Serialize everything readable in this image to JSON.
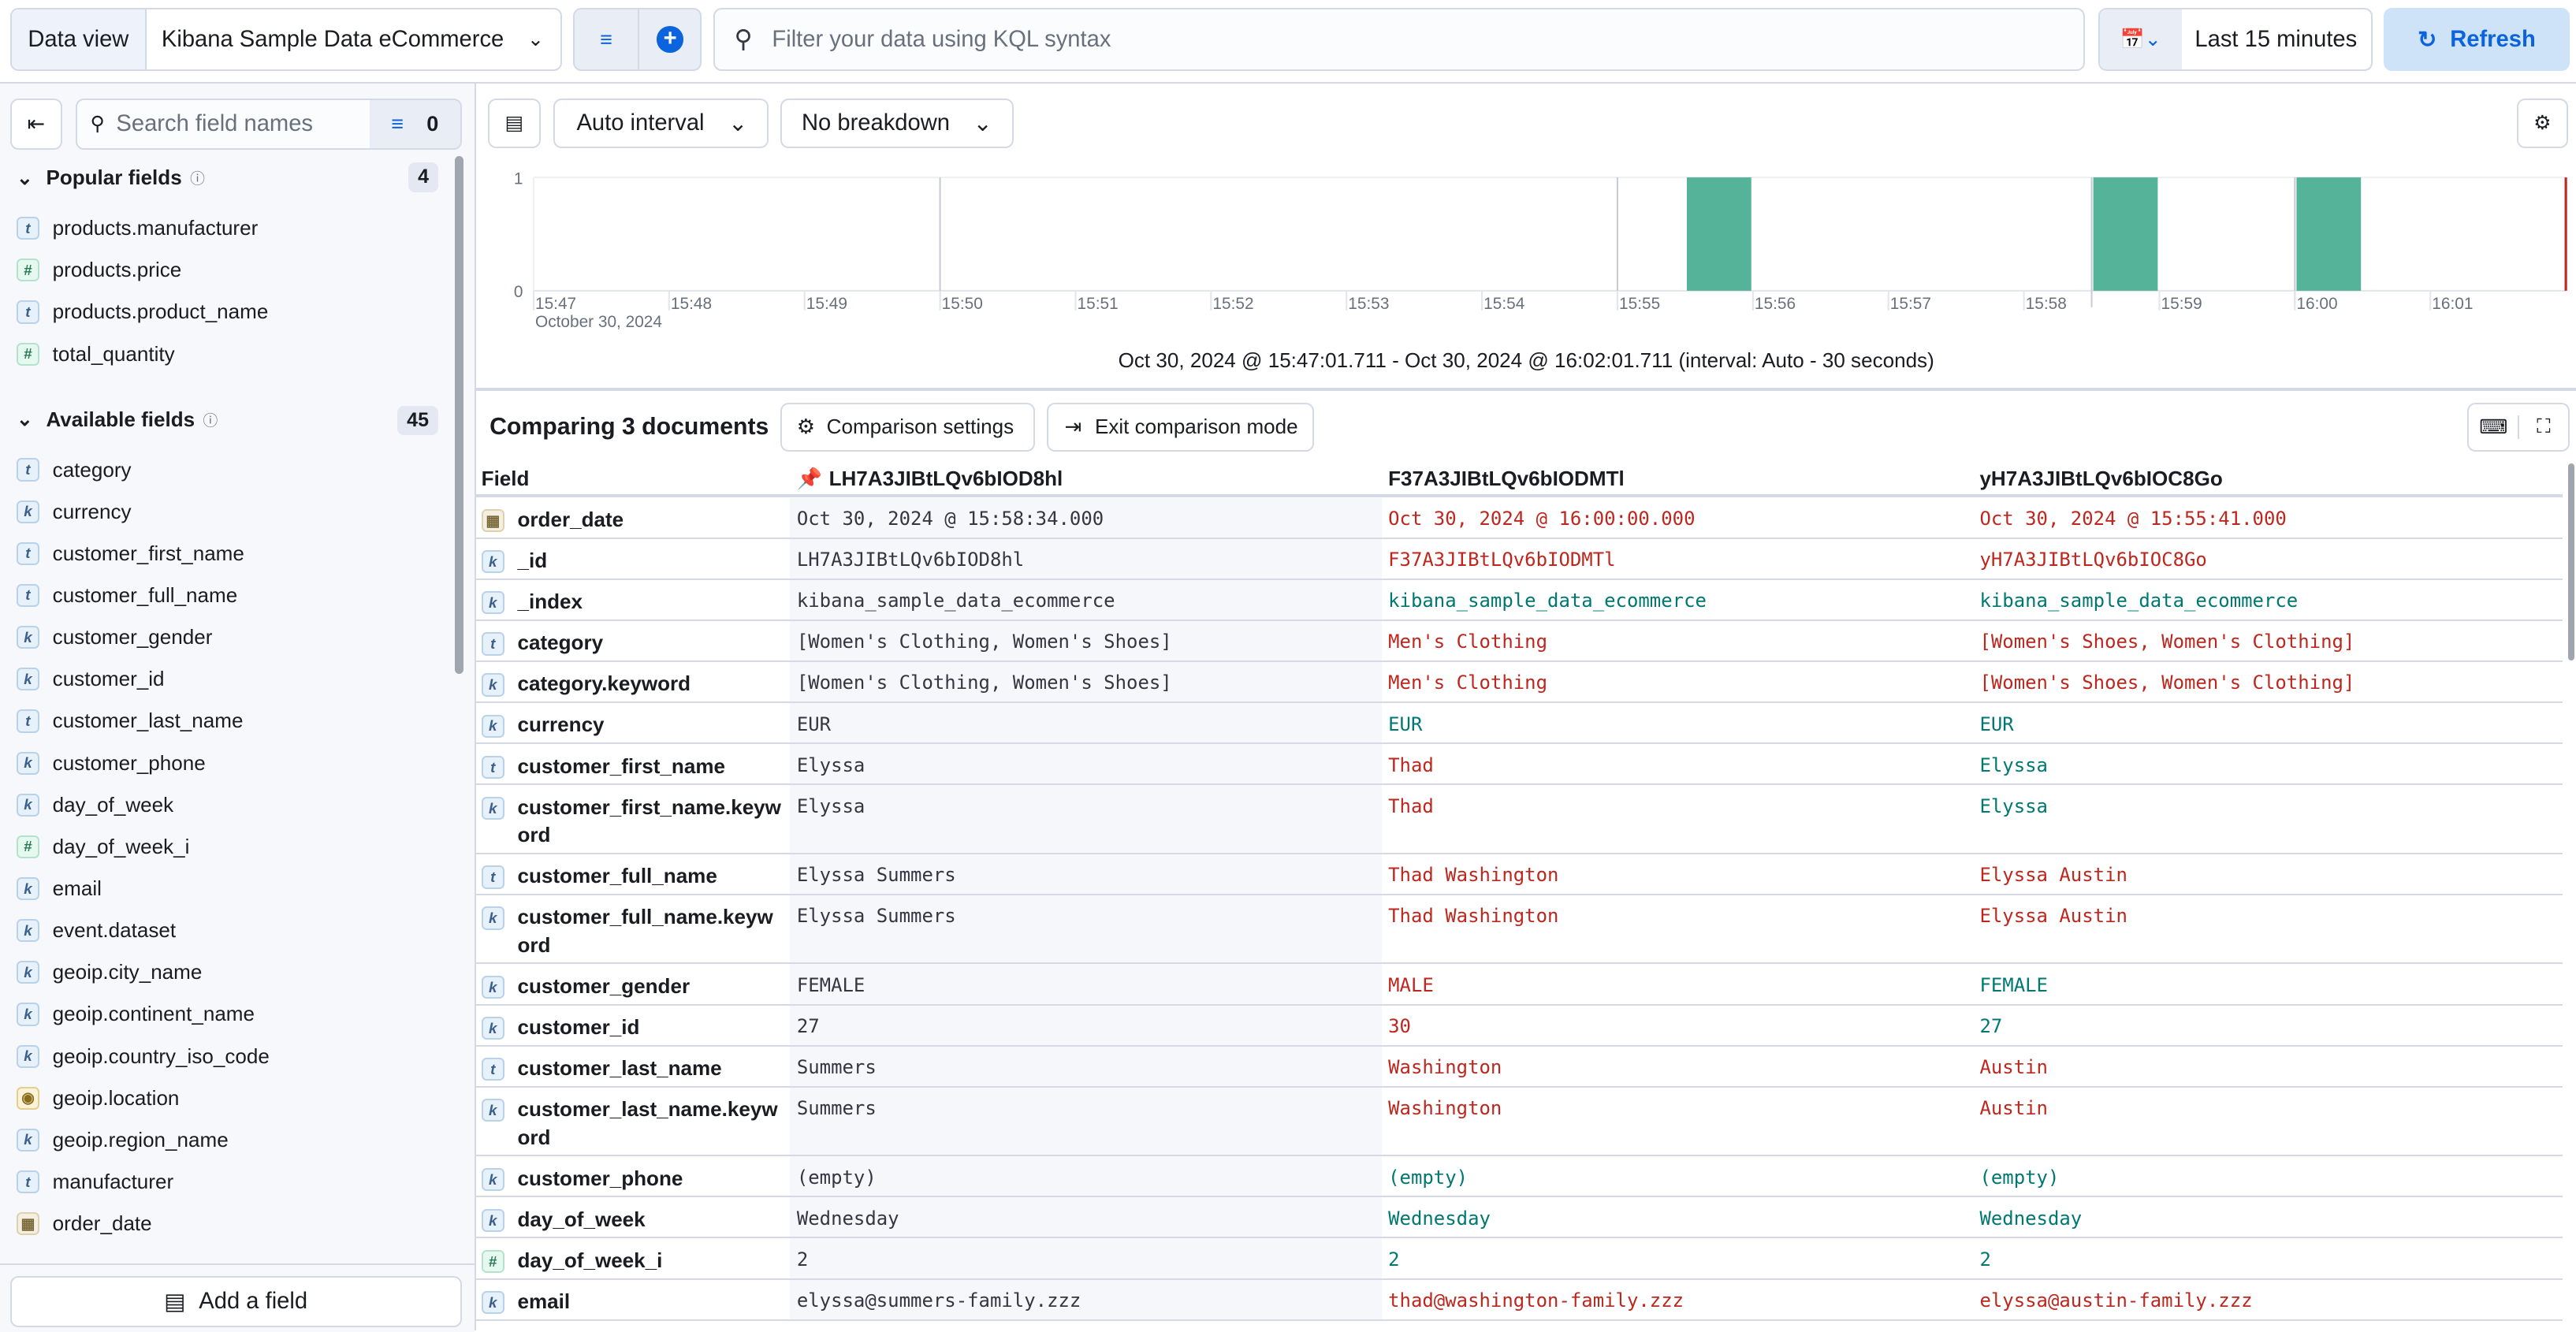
{
  "topbar": {
    "data_view_label": "Data view",
    "data_view_value": "Kibana Sample Data eCommerce",
    "query_placeholder": "Filter your data using KQL syntax",
    "time_range": "Last 15 minutes",
    "refresh_label": "Refresh",
    "accent": "#0b64dd"
  },
  "sidebar": {
    "search_placeholder": "Search field names",
    "filter_count": "0",
    "popular": {
      "title": "Popular fields",
      "count": "4",
      "fields": [
        {
          "type": "t",
          "name": "products.manufacturer"
        },
        {
          "type": "n",
          "name": "products.price"
        },
        {
          "type": "t",
          "name": "products.product_name"
        },
        {
          "type": "n",
          "name": "total_quantity"
        }
      ]
    },
    "available": {
      "title": "Available fields",
      "count": "45",
      "fields": [
        {
          "type": "t",
          "name": "category"
        },
        {
          "type": "k",
          "name": "currency"
        },
        {
          "type": "t",
          "name": "customer_first_name"
        },
        {
          "type": "t",
          "name": "customer_full_name"
        },
        {
          "type": "k",
          "name": "customer_gender"
        },
        {
          "type": "k",
          "name": "customer_id"
        },
        {
          "type": "t",
          "name": "customer_last_name"
        },
        {
          "type": "k",
          "name": "customer_phone"
        },
        {
          "type": "k",
          "name": "day_of_week"
        },
        {
          "type": "n",
          "name": "day_of_week_i"
        },
        {
          "type": "k",
          "name": "email"
        },
        {
          "type": "k",
          "name": "event.dataset"
        },
        {
          "type": "k",
          "name": "geoip.city_name"
        },
        {
          "type": "k",
          "name": "geoip.continent_name"
        },
        {
          "type": "k",
          "name": "geoip.country_iso_code"
        },
        {
          "type": "g",
          "name": "geoip.location"
        },
        {
          "type": "k",
          "name": "geoip.region_name"
        },
        {
          "type": "t",
          "name": "manufacturer"
        },
        {
          "type": "d",
          "name": "order_date"
        }
      ]
    },
    "add_field_label": "Add a field"
  },
  "chart_toolbar": {
    "interval": "Auto interval",
    "breakdown": "No breakdown"
  },
  "chart_data": {
    "type": "bar",
    "x_ticks": [
      "15:47",
      "15:48",
      "15:49",
      "15:50",
      "15:51",
      "15:52",
      "15:53",
      "15:54",
      "15:55",
      "15:56",
      "15:57",
      "15:58",
      "15:59",
      "16:00",
      "16:01"
    ],
    "x_sublabel": "October 30, 2024",
    "y_ticks": [
      "0",
      "1"
    ],
    "ylim": [
      0,
      1
    ],
    "bars": [
      {
        "start": "15:55:30",
        "end": "15:56:00",
        "value": 1
      },
      {
        "start": "15:58:30",
        "end": "15:59:00",
        "value": 1
      },
      {
        "start": "16:00:00",
        "end": "16:00:30",
        "value": 1
      }
    ],
    "bar_color": "#54b399",
    "caption": "Oct 30, 2024 @ 15:47:01.711 - Oct 30, 2024 @ 16:02:01.711 (interval: Auto - 30 seconds)"
  },
  "comparison": {
    "title": "Comparing 3 documents",
    "settings_label": "Comparison settings",
    "exit_label": "Exit comparison mode",
    "headers": [
      "Field",
      "LH7A3JIBtLQv6bIOD8hl",
      "F37A3JIBtLQv6bIODMTl",
      "yH7A3JIBtLQv6bIOC8Go"
    ],
    "colors": {
      "diff": "#bd271e",
      "same": "#007871"
    },
    "rows": [
      {
        "type": "d",
        "name": "order_date",
        "values": [
          "Oct 30, 2024 @ 15:58:34.000",
          "Oct 30, 2024 @ 16:00:00.000",
          "Oct 30, 2024 @ 15:55:41.000"
        ],
        "status": [
          "base",
          "diff",
          "diff"
        ]
      },
      {
        "type": "k",
        "name": "_id",
        "values": [
          "LH7A3JIBtLQv6bIOD8hl",
          "F37A3JIBtLQv6bIODMTl",
          "yH7A3JIBtLQv6bIOC8Go"
        ],
        "status": [
          "base",
          "diff",
          "diff"
        ]
      },
      {
        "type": "k",
        "name": "_index",
        "values": [
          "kibana_sample_data_ecommerce",
          "kibana_sample_data_ecommerce",
          "kibana_sample_data_ecommerce"
        ],
        "status": [
          "base",
          "same",
          "same"
        ]
      },
      {
        "type": "t",
        "name": "category",
        "values": [
          "[Women's Clothing, Women's Shoes]",
          "Men's Clothing",
          "[Women's Shoes, Women's Clothing]"
        ],
        "status": [
          "base",
          "diff",
          "diff"
        ]
      },
      {
        "type": "k",
        "name": "category.keyword",
        "values": [
          "[Women's Clothing, Women's Shoes]",
          "Men's Clothing",
          "[Women's Shoes, Women's Clothing]"
        ],
        "status": [
          "base",
          "diff",
          "diff"
        ]
      },
      {
        "type": "k",
        "name": "currency",
        "values": [
          "EUR",
          "EUR",
          "EUR"
        ],
        "status": [
          "base",
          "same",
          "same"
        ]
      },
      {
        "type": "t",
        "name": "customer_first_name",
        "values": [
          "Elyssa",
          "Thad",
          "Elyssa"
        ],
        "status": [
          "base",
          "diff",
          "same"
        ]
      },
      {
        "type": "k",
        "name": "customer_first_name.keyword",
        "values": [
          "Elyssa",
          "Thad",
          "Elyssa"
        ],
        "status": [
          "base",
          "diff",
          "same"
        ],
        "tall": true
      },
      {
        "type": "t",
        "name": "customer_full_name",
        "values": [
          "Elyssa Summers",
          "Thad Washington",
          "Elyssa Austin"
        ],
        "status": [
          "base",
          "diff",
          "diff"
        ]
      },
      {
        "type": "k",
        "name": "customer_full_name.keyword",
        "values": [
          "Elyssa Summers",
          "Thad Washington",
          "Elyssa Austin"
        ],
        "status": [
          "base",
          "diff",
          "diff"
        ],
        "tall": true
      },
      {
        "type": "k",
        "name": "customer_gender",
        "values": [
          "FEMALE",
          "MALE",
          "FEMALE"
        ],
        "status": [
          "base",
          "diff",
          "same"
        ]
      },
      {
        "type": "k",
        "name": "customer_id",
        "values": [
          "27",
          "30",
          "27"
        ],
        "status": [
          "base",
          "diff",
          "same"
        ]
      },
      {
        "type": "t",
        "name": "customer_last_name",
        "values": [
          "Summers",
          "Washington",
          "Austin"
        ],
        "status": [
          "base",
          "diff",
          "diff"
        ]
      },
      {
        "type": "k",
        "name": "customer_last_name.keyword",
        "values": [
          "Summers",
          "Washington",
          "Austin"
        ],
        "status": [
          "base",
          "diff",
          "diff"
        ],
        "tall": true
      },
      {
        "type": "k",
        "name": "customer_phone",
        "values": [
          "(empty)",
          "(empty)",
          "(empty)"
        ],
        "status": [
          "base",
          "same",
          "same"
        ]
      },
      {
        "type": "k",
        "name": "day_of_week",
        "values": [
          "Wednesday",
          "Wednesday",
          "Wednesday"
        ],
        "status": [
          "base",
          "same",
          "same"
        ]
      },
      {
        "type": "n",
        "name": "day_of_week_i",
        "values": [
          "2",
          "2",
          "2"
        ],
        "status": [
          "base",
          "same",
          "same"
        ]
      },
      {
        "type": "k",
        "name": "email",
        "values": [
          "elyssa@summers-family.zzz",
          "thad@washington-family.zzz",
          "elyssa@austin-family.zzz"
        ],
        "status": [
          "base",
          "diff",
          "diff"
        ]
      }
    ]
  }
}
